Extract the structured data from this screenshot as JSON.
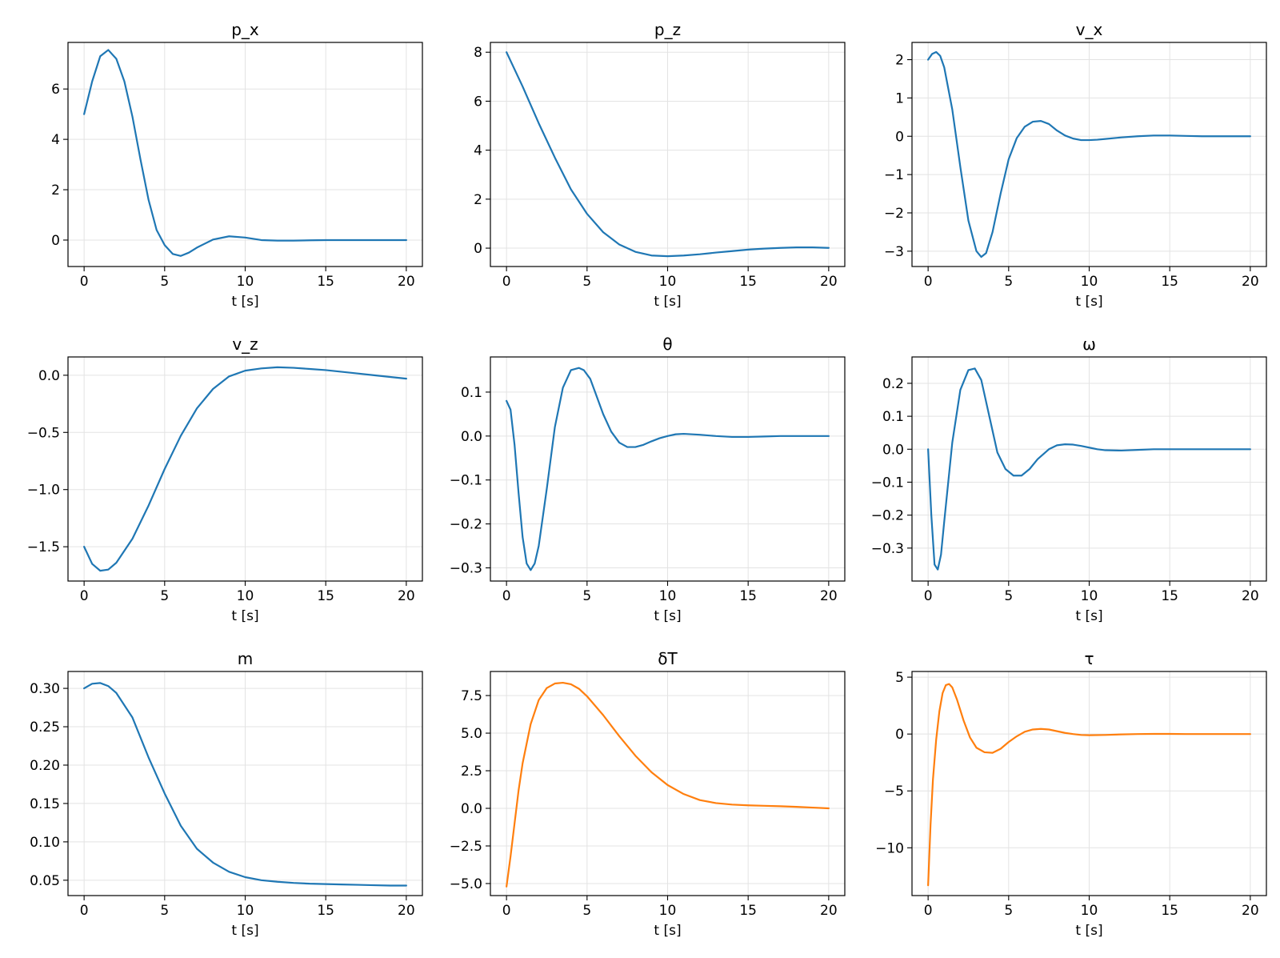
{
  "colors": {
    "state": "#1f77b4",
    "input": "#ff7f0e",
    "grid": "#e3e3e3",
    "axes": "#000000"
  },
  "chart_data": [
    {
      "type": "line",
      "title": "p_x",
      "xlabel": "t [s]",
      "ylabel": "",
      "color": "state",
      "grid": true,
      "xlim": [
        -1,
        21
      ],
      "ylim": [
        -1.05,
        7.85
      ],
      "xticks": [
        0,
        5,
        10,
        15,
        20
      ],
      "xtick_labels": [
        "0",
        "5",
        "10",
        "15",
        "20"
      ],
      "yticks": [
        0,
        2,
        4,
        6
      ],
      "ytick_labels": [
        "0",
        "2",
        "4",
        "6"
      ],
      "x": [
        0,
        0.5,
        1,
        1.5,
        2,
        2.5,
        3,
        3.5,
        4,
        4.5,
        5,
        5.5,
        6,
        6.5,
        7,
        8,
        9,
        10,
        11,
        12,
        13,
        14,
        15,
        16,
        17,
        18,
        19,
        20
      ],
      "y": [
        5.0,
        6.3,
        7.3,
        7.55,
        7.2,
        6.3,
        4.9,
        3.2,
        1.6,
        0.4,
        -0.2,
        -0.55,
        -0.63,
        -0.5,
        -0.3,
        0.02,
        0.15,
        0.1,
        0.0,
        -0.02,
        -0.02,
        -0.01,
        0.0,
        0.0,
        0.0,
        0.0,
        0.0,
        0.0
      ]
    },
    {
      "type": "line",
      "title": "p_z",
      "xlabel": "t [s]",
      "ylabel": "",
      "color": "state",
      "grid": true,
      "xlim": [
        -1,
        21
      ],
      "ylim": [
        -0.75,
        8.4
      ],
      "xticks": [
        0,
        5,
        10,
        15,
        20
      ],
      "xtick_labels": [
        "0",
        "5",
        "10",
        "15",
        "20"
      ],
      "yticks": [
        0,
        2,
        4,
        6,
        8
      ],
      "ytick_labels": [
        "0",
        "2",
        "4",
        "6",
        "8"
      ],
      "x": [
        0,
        1,
        2,
        3,
        4,
        5,
        6,
        7,
        8,
        9,
        10,
        11,
        12,
        13,
        14,
        15,
        16,
        17,
        18,
        19,
        20
      ],
      "y": [
        8.0,
        6.6,
        5.1,
        3.7,
        2.4,
        1.4,
        0.65,
        0.15,
        -0.15,
        -0.3,
        -0.33,
        -0.3,
        -0.25,
        -0.18,
        -0.12,
        -0.06,
        -0.02,
        0.01,
        0.03,
        0.03,
        0.01
      ]
    },
    {
      "type": "line",
      "title": "v_x",
      "xlabel": "t [s]",
      "ylabel": "",
      "color": "state",
      "grid": true,
      "xlim": [
        -1,
        21
      ],
      "ylim": [
        -3.4,
        2.45
      ],
      "xticks": [
        0,
        5,
        10,
        15,
        20
      ],
      "xtick_labels": [
        "0",
        "5",
        "10",
        "15",
        "20"
      ],
      "yticks": [
        -3,
        -2,
        -1,
        0,
        1,
        2
      ],
      "ytick_labels": [
        "−3",
        "−2",
        "−1",
        "0",
        "1",
        "2"
      ],
      "x": [
        0,
        0.25,
        0.5,
        0.75,
        1,
        1.5,
        2,
        2.5,
        3,
        3.3,
        3.6,
        4,
        4.5,
        5,
        5.5,
        6,
        6.5,
        7,
        7.5,
        8,
        8.5,
        9,
        9.5,
        10,
        10.5,
        11,
        12,
        13,
        14,
        15,
        16,
        17,
        18,
        19,
        20
      ],
      "y": [
        2.0,
        2.15,
        2.2,
        2.1,
        1.8,
        0.7,
        -0.8,
        -2.2,
        -3.0,
        -3.15,
        -3.05,
        -2.5,
        -1.5,
        -0.6,
        -0.05,
        0.25,
        0.38,
        0.4,
        0.32,
        0.15,
        0.02,
        -0.06,
        -0.1,
        -0.1,
        -0.09,
        -0.07,
        -0.03,
        0.0,
        0.02,
        0.02,
        0.01,
        0.0,
        0.0,
        0.0,
        0.0
      ]
    },
    {
      "type": "line",
      "title": "v_z",
      "xlabel": "t [s]",
      "ylabel": "",
      "color": "state",
      "grid": true,
      "xlim": [
        -1,
        21
      ],
      "ylim": [
        -1.8,
        0.16
      ],
      "xticks": [
        0,
        5,
        10,
        15,
        20
      ],
      "xtick_labels": [
        "0",
        "5",
        "10",
        "15",
        "20"
      ],
      "yticks": [
        -1.5,
        -1.0,
        -0.5,
        0.0
      ],
      "ytick_labels": [
        "−1.5",
        "−1.0",
        "−0.5",
        "0.0"
      ],
      "x": [
        0,
        0.5,
        1,
        1.5,
        2,
        3,
        4,
        5,
        6,
        7,
        8,
        9,
        10,
        11,
        12,
        13,
        14,
        15,
        16,
        17,
        18,
        19,
        20
      ],
      "y": [
        -1.5,
        -1.65,
        -1.71,
        -1.7,
        -1.64,
        -1.43,
        -1.14,
        -0.82,
        -0.53,
        -0.29,
        -0.12,
        -0.01,
        0.04,
        0.06,
        0.07,
        0.065,
        0.055,
        0.045,
        0.03,
        0.015,
        0.0,
        -0.015,
        -0.03
      ]
    },
    {
      "type": "line",
      "title": "θ",
      "xlabel": "t [s]",
      "ylabel": "",
      "color": "state",
      "grid": true,
      "xlim": [
        -1,
        21
      ],
      "ylim": [
        -0.33,
        0.18
      ],
      "xticks": [
        0,
        5,
        10,
        15,
        20
      ],
      "xtick_labels": [
        "0",
        "5",
        "10",
        "15",
        "20"
      ],
      "yticks": [
        -0.3,
        -0.2,
        -0.1,
        0.0,
        0.1
      ],
      "ytick_labels": [
        "−0.3",
        "−0.2",
        "−0.1",
        "0.0",
        "0.1"
      ],
      "x": [
        0,
        0.25,
        0.5,
        0.75,
        1,
        1.25,
        1.5,
        1.75,
        2,
        2.5,
        3,
        3.5,
        4,
        4.5,
        4.8,
        5.2,
        5.5,
        6,
        6.5,
        7,
        7.5,
        8,
        8.5,
        9,
        9.5,
        10,
        10.5,
        11,
        12,
        13,
        14,
        15,
        16,
        17,
        18,
        19,
        20
      ],
      "y": [
        0.08,
        0.06,
        -0.02,
        -0.13,
        -0.23,
        -0.29,
        -0.305,
        -0.29,
        -0.25,
        -0.12,
        0.02,
        0.11,
        0.15,
        0.155,
        0.15,
        0.13,
        0.1,
        0.05,
        0.01,
        -0.015,
        -0.025,
        -0.025,
        -0.02,
        -0.012,
        -0.005,
        0.0,
        0.004,
        0.005,
        0.003,
        0.0,
        -0.002,
        -0.002,
        -0.001,
        0.0,
        0.0,
        0.0,
        0.0
      ]
    },
    {
      "type": "line",
      "title": "ω",
      "xlabel": "t [s]",
      "ylabel": "",
      "color": "state",
      "grid": true,
      "xlim": [
        -1,
        21
      ],
      "ylim": [
        -0.4,
        0.28
      ],
      "xticks": [
        0,
        5,
        10,
        15,
        20
      ],
      "xtick_labels": [
        "0",
        "5",
        "10",
        "15",
        "20"
      ],
      "yticks": [
        -0.3,
        -0.2,
        -0.1,
        0.0,
        0.1,
        0.2
      ],
      "ytick_labels": [
        "−0.3",
        "−0.2",
        "−0.1",
        "0.0",
        "0.1",
        "0.2"
      ],
      "x": [
        0,
        0.2,
        0.4,
        0.6,
        0.8,
        1,
        1.5,
        2,
        2.5,
        2.9,
        3.3,
        3.8,
        4.3,
        4.8,
        5.3,
        5.8,
        6.3,
        6.8,
        7.5,
        8,
        8.5,
        9,
        9.5,
        10,
        10.5,
        11,
        12,
        13,
        14,
        15,
        16,
        17,
        18,
        19,
        20
      ],
      "y": [
        0.0,
        -0.2,
        -0.35,
        -0.365,
        -0.32,
        -0.22,
        0.02,
        0.18,
        0.24,
        0.245,
        0.21,
        0.1,
        -0.01,
        -0.06,
        -0.08,
        -0.08,
        -0.06,
        -0.03,
        0.0,
        0.012,
        0.015,
        0.014,
        0.01,
        0.005,
        0.0,
        -0.003,
        -0.004,
        -0.002,
        0.0,
        0.0,
        0.0,
        0.0,
        0.0,
        0.0,
        0.0
      ]
    },
    {
      "type": "line",
      "title": "m",
      "xlabel": "t [s]",
      "ylabel": "",
      "color": "state",
      "grid": true,
      "xlim": [
        -1,
        21
      ],
      "ylim": [
        0.03,
        0.322
      ],
      "xticks": [
        0,
        5,
        10,
        15,
        20
      ],
      "xtick_labels": [
        "0",
        "5",
        "10",
        "15",
        "20"
      ],
      "yticks": [
        0.05,
        0.1,
        0.15,
        0.2,
        0.25,
        0.3
      ],
      "ytick_labels": [
        "0.05",
        "0.10",
        "0.15",
        "0.20",
        "0.25",
        "0.30"
      ],
      "x": [
        0,
        0.5,
        1,
        1.5,
        2,
        3,
        4,
        5,
        6,
        7,
        8,
        9,
        10,
        11,
        12,
        13,
        14,
        15,
        16,
        17,
        18,
        19,
        20
      ],
      "y": [
        0.3,
        0.306,
        0.307,
        0.303,
        0.294,
        0.262,
        0.21,
        0.163,
        0.121,
        0.091,
        0.073,
        0.061,
        0.054,
        0.05,
        0.048,
        0.0465,
        0.0455,
        0.045,
        0.0445,
        0.044,
        0.0435,
        0.043,
        0.043
      ]
    },
    {
      "type": "line",
      "title": "δT",
      "xlabel": "t [s]",
      "ylabel": "",
      "color": "input",
      "grid": true,
      "xlim": [
        -1,
        21
      ],
      "ylim": [
        -5.8,
        9.1
      ],
      "xticks": [
        0,
        5,
        10,
        15,
        20
      ],
      "xtick_labels": [
        "0",
        "5",
        "10",
        "15",
        "20"
      ],
      "yticks": [
        -5.0,
        -2.5,
        0.0,
        2.5,
        5.0,
        7.5
      ],
      "ytick_labels": [
        "−5.0",
        "−2.5",
        "0.0",
        "2.5",
        "5.0",
        "7.5"
      ],
      "x": [
        0,
        0.25,
        0.5,
        0.75,
        1,
        1.5,
        2,
        2.5,
        3,
        3.5,
        4,
        4.5,
        5,
        6,
        7,
        8,
        9,
        10,
        11,
        12,
        13,
        14,
        15,
        16,
        17,
        18,
        19,
        20
      ],
      "y": [
        -5.2,
        -3.2,
        -1.0,
        1.2,
        3.0,
        5.6,
        7.2,
        8.0,
        8.3,
        8.35,
        8.25,
        7.95,
        7.45,
        6.2,
        4.8,
        3.5,
        2.4,
        1.55,
        0.95,
        0.55,
        0.35,
        0.25,
        0.2,
        0.17,
        0.14,
        0.1,
        0.05,
        0.0
      ]
    },
    {
      "type": "line",
      "title": "τ",
      "xlabel": "t [s]",
      "ylabel": "",
      "color": "input",
      "grid": true,
      "xlim": [
        -1,
        21
      ],
      "ylim": [
        -14.2,
        5.5
      ],
      "xticks": [
        0,
        5,
        10,
        15,
        20
      ],
      "xtick_labels": [
        "0",
        "5",
        "10",
        "15",
        "20"
      ],
      "yticks": [
        -10,
        -5,
        0,
        5
      ],
      "ytick_labels": [
        "−10",
        "−5",
        "0",
        "5"
      ],
      "x": [
        0,
        0.15,
        0.3,
        0.5,
        0.7,
        0.9,
        1.1,
        1.3,
        1.5,
        1.8,
        2.2,
        2.6,
        3,
        3.5,
        4,
        4.5,
        5,
        5.5,
        6,
        6.5,
        7,
        7.5,
        8,
        8.5,
        9,
        9.5,
        10,
        11,
        12,
        13,
        14,
        15,
        16,
        17,
        18,
        19,
        20
      ],
      "y": [
        -13.3,
        -8.0,
        -4.0,
        -0.5,
        2.0,
        3.6,
        4.3,
        4.4,
        4.1,
        3.0,
        1.2,
        -0.3,
        -1.2,
        -1.6,
        -1.65,
        -1.3,
        -0.7,
        -0.2,
        0.2,
        0.4,
        0.45,
        0.4,
        0.25,
        0.1,
        0.0,
        -0.08,
        -0.1,
        -0.08,
        -0.03,
        0.0,
        0.01,
        0.01,
        0.0,
        0.0,
        0.0,
        0.0,
        0.0
      ]
    }
  ]
}
